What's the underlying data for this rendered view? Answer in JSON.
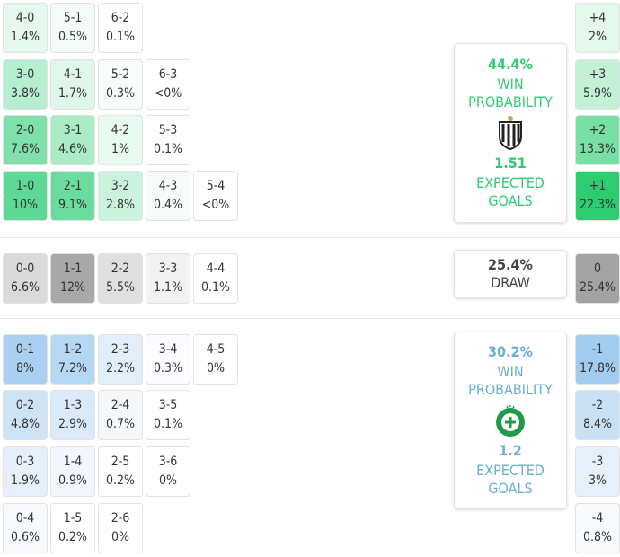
{
  "home": {
    "rows": [
      [
        {
          "score": "4-0",
          "pct": "1.4%",
          "bg": "#e6f9ee"
        },
        {
          "score": "5-1",
          "pct": "0.5%",
          "bg": "#f3fcf7"
        },
        {
          "score": "6-2",
          "pct": "0.1%",
          "bg": "#ffffff"
        }
      ],
      [
        {
          "score": "3-0",
          "pct": "3.8%",
          "bg": "#b6efcf"
        },
        {
          "score": "4-1",
          "pct": "1.7%",
          "bg": "#dff7ea"
        },
        {
          "score": "5-2",
          "pct": "0.3%",
          "bg": "#f8fdfa"
        },
        {
          "score": "6-3",
          "pct": "<0%",
          "bg": "#ffffff"
        }
      ],
      [
        {
          "score": "2-0",
          "pct": "7.6%",
          "bg": "#7fe0aa"
        },
        {
          "score": "3-1",
          "pct": "4.6%",
          "bg": "#a9ecc6"
        },
        {
          "score": "4-2",
          "pct": "1%",
          "bg": "#e9faf0"
        },
        {
          "score": "5-3",
          "pct": "0.1%",
          "bg": "#ffffff"
        }
      ],
      [
        {
          "score": "1-0",
          "pct": "10%",
          "bg": "#5dd995"
        },
        {
          "score": "2-1",
          "pct": "9.1%",
          "bg": "#6adc9d"
        },
        {
          "score": "3-2",
          "pct": "2.8%",
          "bg": "#c9f3db"
        },
        {
          "score": "4-3",
          "pct": "0.4%",
          "bg": "#f6fdf9"
        },
        {
          "score": "5-4",
          "pct": "<0%",
          "bg": "#ffffff"
        }
      ]
    ],
    "margins": [
      {
        "label": "+4",
        "pct": "2%",
        "bg": "#e4f9ec"
      },
      {
        "label": "+3",
        "pct": "5.9%",
        "bg": "#c2f1d6"
      },
      {
        "label": "+2",
        "pct": "13.3%",
        "bg": "#78dfa5"
      },
      {
        "label": "+1",
        "pct": "22.3%",
        "bg": "#2ecc71"
      }
    ],
    "summary": {
      "pct": "44.4%",
      "label": "WIN PROBABILITY",
      "xg": "1.51",
      "xg_label": "EXPECTED GOALS",
      "color": "#2ecc71"
    }
  },
  "draw": {
    "cells": [
      {
        "score": "0-0",
        "pct": "6.6%",
        "bg": "#dadada"
      },
      {
        "score": "1-1",
        "pct": "12%",
        "bg": "#a8a8a8"
      },
      {
        "score": "2-2",
        "pct": "5.5%",
        "bg": "#e0e0e0"
      },
      {
        "score": "3-3",
        "pct": "1.1%",
        "bg": "#f2f2f2"
      },
      {
        "score": "4-4",
        "pct": "0.1%",
        "bg": "#ffffff"
      }
    ],
    "margin": {
      "label": "0",
      "pct": "25.4%",
      "bg": "#a3a3a3"
    },
    "summary": {
      "pct": "25.4%",
      "label": "DRAW",
      "color": "#444444"
    }
  },
  "away": {
    "rows": [
      [
        {
          "score": "0-1",
          "pct": "8%",
          "bg": "#a9d0f0"
        },
        {
          "score": "1-2",
          "pct": "7.2%",
          "bg": "#b4d7f2"
        },
        {
          "score": "2-3",
          "pct": "2.2%",
          "bg": "#e2eefa"
        },
        {
          "score": "3-4",
          "pct": "0.3%",
          "bg": "#fafcff"
        },
        {
          "score": "4-5",
          "pct": "0%",
          "bg": "#ffffff"
        }
      ],
      [
        {
          "score": "0-2",
          "pct": "4.8%",
          "bg": "#cde3f6"
        },
        {
          "score": "1-3",
          "pct": "2.9%",
          "bg": "#dbeaf8"
        },
        {
          "score": "2-4",
          "pct": "0.7%",
          "bg": "#f4f8fd"
        },
        {
          "score": "3-5",
          "pct": "0.1%",
          "bg": "#ffffff"
        }
      ],
      [
        {
          "score": "0-3",
          "pct": "1.9%",
          "bg": "#e5f0fa"
        },
        {
          "score": "1-4",
          "pct": "0.9%",
          "bg": "#f1f7fd"
        },
        {
          "score": "2-5",
          "pct": "0.2%",
          "bg": "#ffffff"
        },
        {
          "score": "3-6",
          "pct": "0%",
          "bg": "#ffffff"
        }
      ],
      [
        {
          "score": "0-4",
          "pct": "0.6%",
          "bg": "#f6fafe"
        },
        {
          "score": "1-5",
          "pct": "0.2%",
          "bg": "#ffffff"
        },
        {
          "score": "2-6",
          "pct": "0%",
          "bg": "#ffffff"
        }
      ]
    ],
    "margins": [
      {
        "label": "-1",
        "pct": "17.8%",
        "bg": "#a1cbef"
      },
      {
        "label": "-2",
        "pct": "8.4%",
        "bg": "#c9e1f5"
      },
      {
        "label": "-3",
        "pct": "3%",
        "bg": "#e6f0fa"
      },
      {
        "label": "-4",
        "pct": "0.8%",
        "bg": "#f7fbfe"
      }
    ],
    "summary": {
      "pct": "30.2%",
      "label": "WIN PROBABILITY",
      "xg": "1.2",
      "xg_label": "EXPECTED GOALS",
      "color": "#6aaed6"
    }
  }
}
